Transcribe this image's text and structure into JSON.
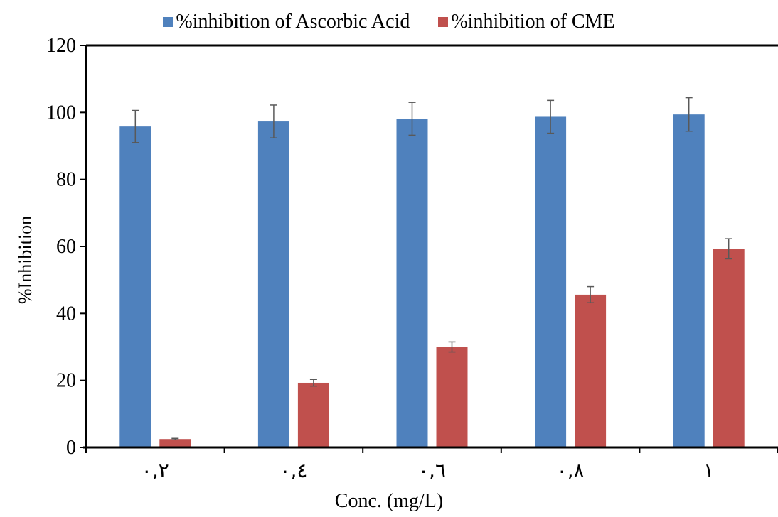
{
  "chart_data": {
    "type": "bar",
    "xlabel": "Conc. (mg/L)",
    "ylabel": "%Inhibition",
    "ylim": [
      0,
      120
    ],
    "yticks": [
      0,
      20,
      40,
      60,
      80,
      100,
      120
    ],
    "grid": false,
    "legend_position": "top",
    "categories": [
      "٠,٢",
      "٠,٤",
      "٠,٦",
      "٠,٨",
      "١"
    ],
    "series": [
      {
        "name": "%inhibition of Ascorbic Acid",
        "color": "#4F81BD",
        "values": [
          95.8,
          97.3,
          98.1,
          98.7,
          99.4
        ],
        "error": [
          4.8,
          4.9,
          4.9,
          4.9,
          5.0
        ]
      },
      {
        "name": "%inhibition of CME",
        "color": "#C0504D",
        "values": [
          2.5,
          19.3,
          30.0,
          45.6,
          59.3
        ],
        "error": [
          0.2,
          1.0,
          1.5,
          2.4,
          3.0
        ]
      }
    ]
  }
}
